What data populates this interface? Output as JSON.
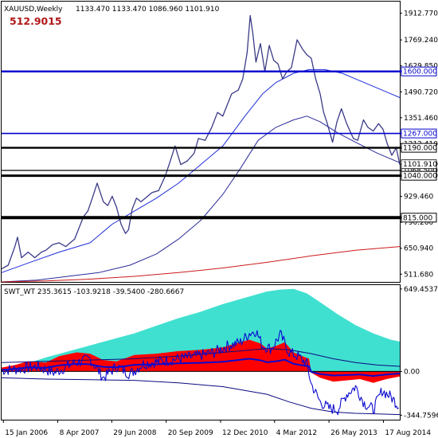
{
  "main_header": {
    "symbol": "XAUUSD,Weekly",
    "ohlc": "1133.470 1133.470 1086.960 1101.910",
    "indicator_value": "512.9015"
  },
  "sub_header": {
    "text": "SWT_WT 235.3615 -103.9218 -39.5400 -280.6667"
  },
  "colors": {
    "price": "#3a3a88",
    "ma_fast": "#1d2dd8",
    "ma_mid": "#2a2a9a",
    "ma_slow": "#cc1a1a",
    "level_blue": "#0000cc",
    "level_black": "#000000",
    "osc_cyan": "#40e0d0",
    "osc_red": "#ff0000",
    "osc_line": "#0a0ad0",
    "osc_envelope": "#0a0a80"
  },
  "chart_data": [
    {
      "type": "line",
      "title": "XAUUSD,Weekly",
      "ylim": [
        470,
        1975
      ],
      "y_ticks": [
        1912.77,
        1769.24,
        1629.85,
        1490.72,
        1351.46,
        1212.41,
        1101.91,
        1068.5,
        1040.0,
        929.46,
        790.26,
        650.94,
        511.68
      ],
      "y_tick_labels": [
        "1912.770",
        "1769.240",
        "1629.850",
        "1490.720",
        "1351.460",
        "1212.410",
        "1101.910",
        "1068.500",
        "1040.000",
        "929.460",
        "790.260",
        "650.940",
        "511.680"
      ],
      "x_tick_labels": [
        "15 Jan 2006",
        "8 Apr 2007",
        "29 Jun 2008",
        "20 Sep 2009",
        "12 Dec 2010",
        "4 Mar 2012",
        "26 May 2013",
        "17 Aug 2014"
      ],
      "x_tick_dates": [
        2006.04,
        2007.27,
        2008.49,
        2009.72,
        2010.95,
        2012.17,
        2013.4,
        2014.63
      ],
      "x_range": [
        2006.0,
        2015.0
      ],
      "series": [
        {
          "x": [
            2006.0,
            2006.15,
            2006.3,
            2006.36,
            2006.45,
            2006.6,
            2006.75,
            2006.9,
            2007.0,
            2007.15,
            2007.3,
            2007.45,
            2007.55,
            2007.65,
            2007.75,
            2007.85,
            2007.95,
            2008.05,
            2008.16,
            2008.3,
            2008.4,
            2008.5,
            2008.6,
            2008.7,
            2008.8,
            2008.87,
            2008.95,
            2009.05,
            2009.15,
            2009.25,
            2009.4,
            2009.55,
            2009.7,
            2009.8,
            2009.92,
            2010.05,
            2010.2,
            2010.35,
            2010.45,
            2010.6,
            2010.75,
            2010.88,
            2011.0,
            2011.1,
            2011.2,
            2011.35,
            2011.45,
            2011.55,
            2011.62,
            2011.68,
            2011.75,
            2011.85,
            2011.95,
            2012.05,
            2012.15,
            2012.25,
            2012.35,
            2012.45,
            2012.55,
            2012.68,
            2012.8,
            2012.9,
            2013.0,
            2013.1,
            2013.2,
            2013.28,
            2013.35,
            2013.48,
            2013.58,
            2013.68,
            2013.8,
            2013.95,
            2014.05,
            2014.18,
            2014.28,
            2014.4,
            2014.52,
            2014.62,
            2014.72,
            2014.82,
            2014.92,
            2015.0
          ],
          "values": [
            540,
            560,
            660,
            710,
            600,
            630,
            600,
            630,
            640,
            670,
            680,
            660,
            680,
            700,
            760,
            820,
            850,
            920,
            1000,
            900,
            880,
            930,
            870,
            780,
            730,
            750,
            860,
            920,
            900,
            920,
            950,
            960,
            1040,
            1110,
            1200,
            1100,
            1120,
            1160,
            1240,
            1230,
            1300,
            1380,
            1360,
            1420,
            1480,
            1500,
            1560,
            1700,
            1900,
            1800,
            1650,
            1750,
            1600,
            1740,
            1660,
            1640,
            1560,
            1600,
            1620,
            1770,
            1720,
            1690,
            1670,
            1560,
            1480,
            1380,
            1330,
            1220,
            1330,
            1400,
            1320,
            1240,
            1230,
            1340,
            1300,
            1280,
            1320,
            1290,
            1210,
            1150,
            1190,
            1100
          ]
        },
        {
          "x": [
            2006.0,
            2006.7,
            2007.3,
            2008.0,
            2008.5,
            2009.0,
            2009.5,
            2010.0,
            2010.5,
            2011.0,
            2011.5,
            2011.9,
            2012.2,
            2012.6,
            2012.95,
            2013.3,
            2013.7,
            2014.0,
            2014.4,
            2014.8,
            2015.0
          ],
          "values": [
            520,
            580,
            630,
            680,
            780,
            850,
            920,
            1000,
            1100,
            1200,
            1360,
            1480,
            1540,
            1590,
            1610,
            1610,
            1590,
            1560,
            1520,
            1480,
            1460
          ]
        },
        {
          "x": [
            2006.0,
            2006.8,
            2007.5,
            2008.2,
            2008.9,
            2009.5,
            2010.0,
            2010.5,
            2011.0,
            2011.4,
            2011.8,
            2012.2,
            2012.6,
            2012.9,
            2013.2,
            2013.6,
            2014.0,
            2014.5,
            2015.0
          ],
          "values": [
            470,
            480,
            500,
            520,
            560,
            620,
            700,
            800,
            940,
            1080,
            1230,
            1300,
            1340,
            1360,
            1330,
            1270,
            1220,
            1160,
            1110
          ]
        },
        {
          "x": [
            2006.0,
            2007.0,
            2008.0,
            2009.0,
            2010.0,
            2011.0,
            2012.0,
            2013.0,
            2014.0,
            2015.0
          ],
          "values": [
            470,
            475,
            485,
            500,
            520,
            545,
            575,
            610,
            640,
            660
          ]
        }
      ],
      "horizontal_levels": [
        {
          "value": 1600.0,
          "label": "1600.000",
          "color": "#0000cc",
          "width": 2.4
        },
        {
          "value": 1267.0,
          "label": "1267.000",
          "color": "#0000cc",
          "width": 1.6
        },
        {
          "value": 1190.0,
          "label": "1190.000",
          "color": "#000000",
          "width": 2.4
        },
        {
          "value": 1068.5,
          "label": "1068.500",
          "color": "#000000",
          "width": 1.2
        },
        {
          "value": 1040.0,
          "label": "1040.000",
          "color": "#000000",
          "width": 3.0
        },
        {
          "value": 815.0,
          "label": "815.000",
          "color": "#000000",
          "width": 4.0
        }
      ],
      "current_price": {
        "value": 1101.91,
        "label": "1101.910"
      }
    },
    {
      "type": "area",
      "title": "SWT_WT 235.3615 -103.9218 -39.5400 -280.6667",
      "ylim": [
        -380,
        680
      ],
      "y_ticks": [
        649.4537,
        0.0,
        -344.7596
      ],
      "y_tick_labels": [
        "649.4537",
        "0.00",
        "-344.7596"
      ],
      "x_range": [
        2006.0,
        2015.0
      ],
      "series": [
        {
          "x": [
            2006.0,
            2007.0,
            2008.0,
            2009.0,
            2009.5,
            2010.0,
            2010.5,
            2011.0,
            2011.5,
            2012.0,
            2012.3,
            2012.6,
            2012.9,
            2013.2,
            2013.6,
            2014.0,
            2014.4,
            2014.8,
            2015.0
          ],
          "values": [
            0,
            110,
            205,
            300,
            360,
            420,
            470,
            530,
            580,
            630,
            645,
            650,
            615,
            545,
            450,
            365,
            300,
            250,
            235
          ]
        },
        {
          "x": [
            2006.0,
            2006.3,
            2006.6,
            2007.0,
            2007.3,
            2007.7,
            2008.0,
            2008.3,
            2008.6,
            2009.0,
            2009.5,
            2010.0,
            2010.5,
            2011.0,
            2011.3,
            2011.6,
            2011.85,
            2012.0,
            2012.2,
            2012.4,
            2012.6,
            2012.8,
            2012.95,
            2013.0,
            2013.2,
            2013.5,
            2013.8,
            2014.1,
            2014.4,
            2014.7,
            2015.0
          ],
          "values": [
            30,
            50,
            80,
            70,
            120,
            150,
            140,
            90,
            80,
            130,
            140,
            160,
            170,
            190,
            220,
            250,
            220,
            180,
            200,
            230,
            150,
            120,
            100,
            -10,
            -50,
            -80,
            -70,
            -60,
            -90,
            -60,
            -40
          ]
        },
        {
          "x": [
            2006.0,
            2006.4,
            2006.8,
            2007.2,
            2007.6,
            2008.0,
            2008.3,
            2008.6,
            2008.9,
            2009.2,
            2009.6,
            2010.0,
            2010.4,
            2010.8,
            2011.1,
            2011.4,
            2011.6,
            2011.75,
            2011.9,
            2012.1,
            2012.3,
            2012.5,
            2012.7,
            2012.9,
            2013.0,
            2013.2,
            2013.4,
            2013.6,
            2013.8,
            2014.0,
            2014.2,
            2014.4,
            2014.6,
            2014.8,
            2015.0
          ],
          "values": [
            10,
            20,
            40,
            -10,
            60,
            100,
            -50,
            40,
            -20,
            60,
            80,
            100,
            120,
            150,
            200,
            230,
            300,
            320,
            200,
            180,
            290,
            150,
            120,
            60,
            -100,
            -240,
            -290,
            -300,
            -180,
            -120,
            -250,
            -300,
            -150,
            -200,
            -280
          ]
        },
        {
          "x": [
            2006.0,
            2007.0,
            2008.0,
            2009.0,
            2010.0,
            2011.0,
            2012.0,
            2012.5,
            2013.0,
            2013.5,
            2014.0,
            2014.5,
            2015.0
          ],
          "values": [
            -50,
            -60,
            -65,
            -70,
            -90,
            -120,
            -180,
            -240,
            -290,
            -320,
            -330,
            -335,
            -340
          ]
        },
        {
          "x": [
            2006.0,
            2007.0,
            2008.0,
            2009.0,
            2010.0,
            2011.0,
            2012.0,
            2012.5,
            2013.0,
            2013.5,
            2014.0,
            2014.5,
            2015.0
          ],
          "values": [
            70,
            80,
            90,
            100,
            120,
            150,
            180,
            170,
            140,
            100,
            70,
            50,
            40
          ]
        }
      ]
    }
  ]
}
